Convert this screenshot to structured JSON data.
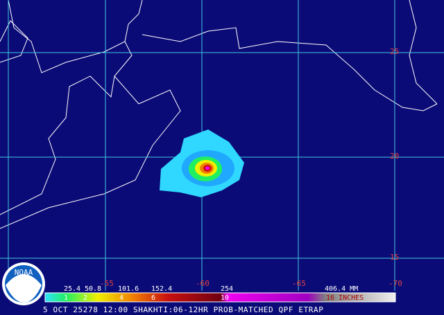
{
  "map": {
    "lat_labels": [
      "25",
      "20",
      "15"
    ],
    "lon_labels": [
      "-55",
      "-60",
      "-65",
      "-70"
    ]
  },
  "legend": {
    "mm_labels": [
      "25.4",
      "50.8",
      "101.6",
      "152.4",
      "254",
      "406.4 MM"
    ],
    "inch_labels": [
      "1",
      "2",
      "4",
      "6",
      "10",
      "16 INCHES"
    ]
  },
  "caption": "5 OCT 25278 12:00 SHAKHTI:06-12HR PROB-MATCHED QPF ETRAP",
  "logo": "NOAA"
}
